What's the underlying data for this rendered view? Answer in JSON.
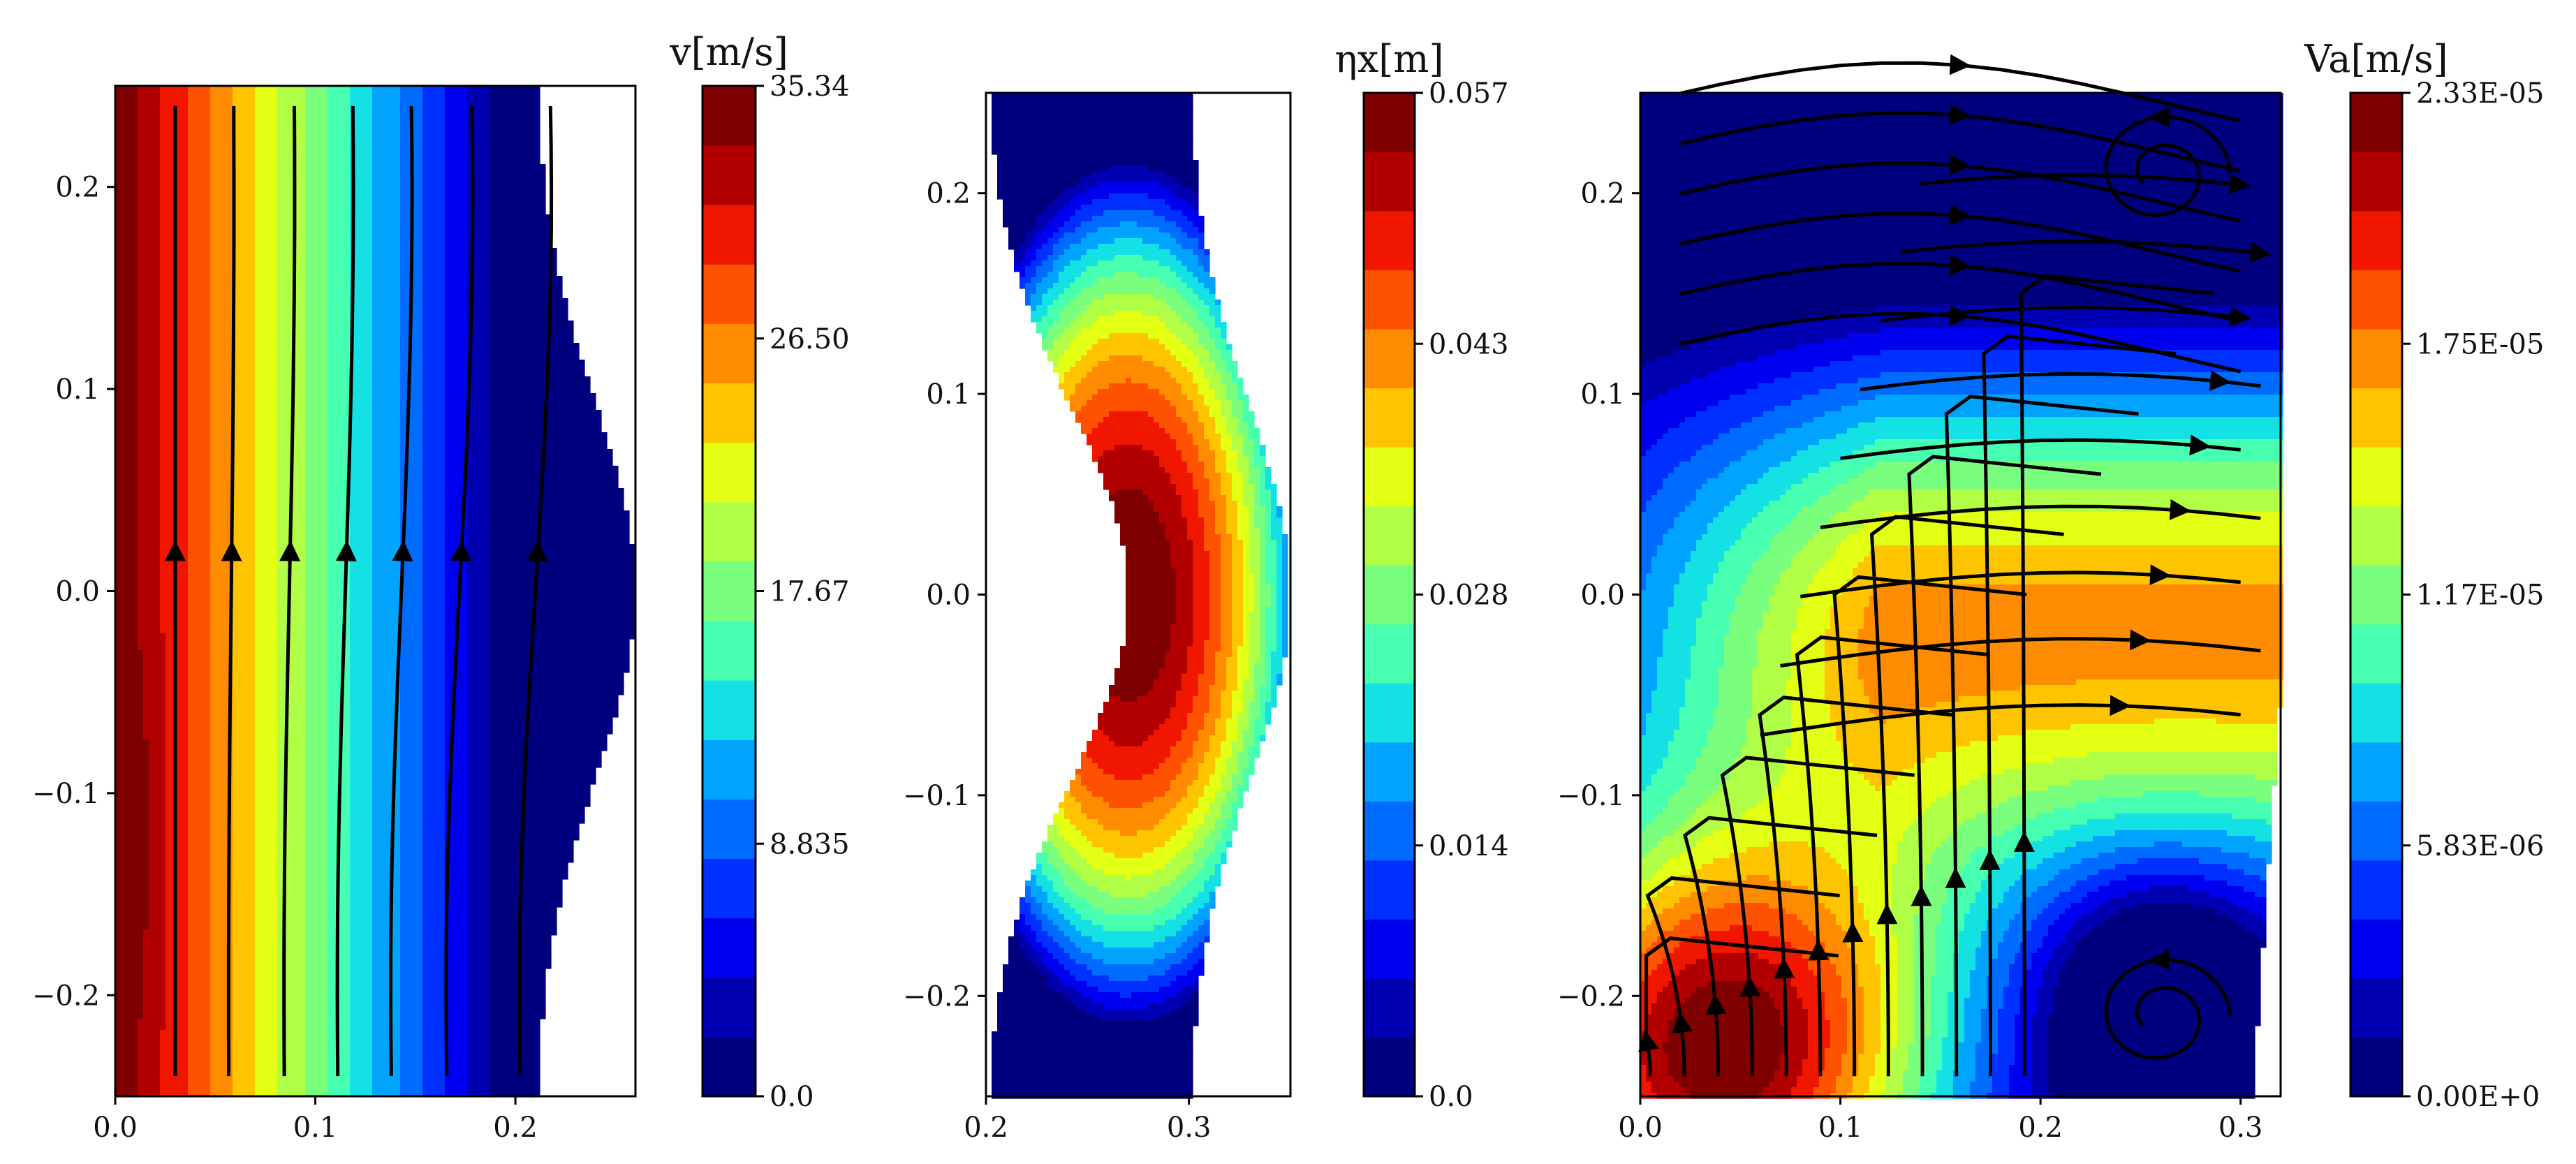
{
  "colormap": [
    "#00007f",
    "#0000b2",
    "#0000f1",
    "#0030ff",
    "#006cff",
    "#00a4ff",
    "#13e1e3",
    "#46ffb0",
    "#79ff7d",
    "#b0ff46",
    "#e3ff13",
    "#ffc400",
    "#ff8b00",
    "#ff5200",
    "#f11600",
    "#b20000",
    "#7f0000"
  ],
  "chart_data": [
    {
      "type": "heatmap",
      "subtype": "filled-contour-with-streamlines",
      "xlim": [
        0.0,
        0.26
      ],
      "ylim": [
        -0.25,
        0.25
      ],
      "x_ticks": [
        "0.0",
        "0.1",
        "0.2"
      ],
      "y_ticks": [
        "−0.2",
        "−0.1",
        "0.0",
        "0.1",
        "0.2"
      ],
      "colorbar": {
        "title": "v[m/s]",
        "min": 0.0,
        "max": 35.34,
        "tick_labels": [
          "0.0",
          "8.835",
          "17.67",
          "26.50",
          "35.34"
        ],
        "levels": 17
      },
      "field_description_values": {
        "streamline_x": [
          0.03,
          0.058,
          0.087,
          0.115,
          0.143,
          0.172,
          0.21
        ],
        "left_value": 35.34,
        "right_value": 0.0
      }
    },
    {
      "type": "heatmap",
      "subtype": "filled-contour",
      "xlim": [
        0.2,
        0.35
      ],
      "ylim": [
        -0.25,
        0.25
      ],
      "x_ticks": [
        "0.2",
        "0.3"
      ],
      "y_ticks": [
        "−0.2",
        "−0.1",
        "0.0",
        "0.1",
        "0.2"
      ],
      "colorbar": {
        "title": "ηx[m]",
        "min": 0.0,
        "max": 0.057,
        "tick_labels": [
          "0.0",
          "0.014",
          "0.028",
          "0.043",
          "0.057"
        ],
        "levels": 17
      },
      "peak": {
        "x": 0.27,
        "y": 0.0,
        "value": 0.057
      }
    },
    {
      "type": "heatmap",
      "subtype": "filled-contour-with-streamlines",
      "xlim": [
        0.0,
        0.32
      ],
      "ylim": [
        -0.25,
        0.25
      ],
      "x_ticks": [
        "0.0",
        "0.1",
        "0.2",
        "0.3"
      ],
      "y_ticks": [
        "−0.2",
        "−0.1",
        "0.0",
        "0.1",
        "0.2"
      ],
      "colorbar": {
        "title": "Va[m/s]",
        "min": 0.0,
        "max": 2.33e-05,
        "tick_labels": [
          "0.00E+0",
          "5.83E-06",
          "1.17E-05",
          "1.75E-05",
          "2.33E-05"
        ],
        "levels": 17
      },
      "vortices": [
        {
          "x": 0.26,
          "y": 0.21
        },
        {
          "x": 0.26,
          "y": -0.21
        }
      ]
    }
  ]
}
